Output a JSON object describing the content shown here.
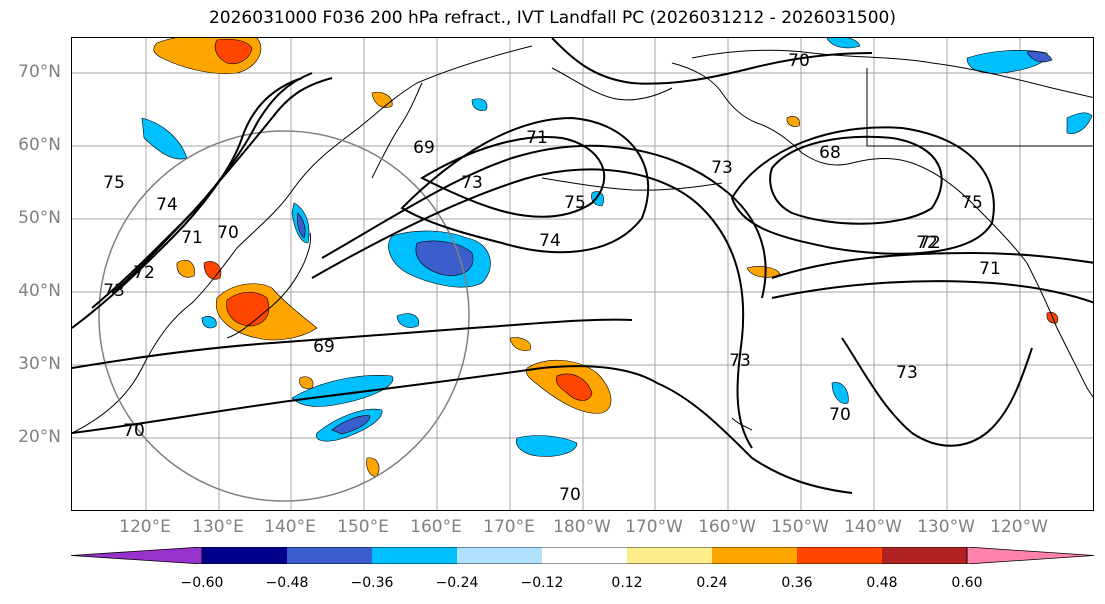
{
  "title": "2026031000 F036 200 hPa refract., IVT Landfall PC (2026031212 - 2026031500)",
  "lat_labels": [
    "70°N",
    "60°N",
    "50°N",
    "40°N",
    "30°N",
    "20°N"
  ],
  "lon_labels": [
    "120°E",
    "130°E",
    "140°E",
    "150°E",
    "160°E",
    "170°E",
    "180°W",
    "170°W",
    "160°W",
    "150°W",
    "140°W",
    "130°W",
    "120°W"
  ],
  "contour_labels": [
    "69",
    "69",
    "70",
    "70",
    "70",
    "70",
    "71",
    "71",
    "72",
    "72",
    "73",
    "73",
    "73",
    "73",
    "74",
    "74",
    "75",
    "75",
    "68",
    "70",
    "72",
    "75",
    "71",
    "73"
  ],
  "colorbar": {
    "colors": [
      "#9932cc",
      "#00008b",
      "#3a5fcd",
      "#00bfff",
      "#b0e2ff",
      "#ffffff",
      "#ffec8b",
      "#ffa500",
      "#ff4500",
      "#b22222",
      "#ff82ab"
    ],
    "tick_labels": [
      "−0.60",
      "−0.48",
      "−0.36",
      "−0.24",
      "−0.12",
      "0.12",
      "0.24",
      "0.36",
      "0.48",
      "0.60"
    ]
  },
  "colors": {
    "coast": "#000000",
    "grid": "#808080",
    "contour": "#000000"
  }
}
